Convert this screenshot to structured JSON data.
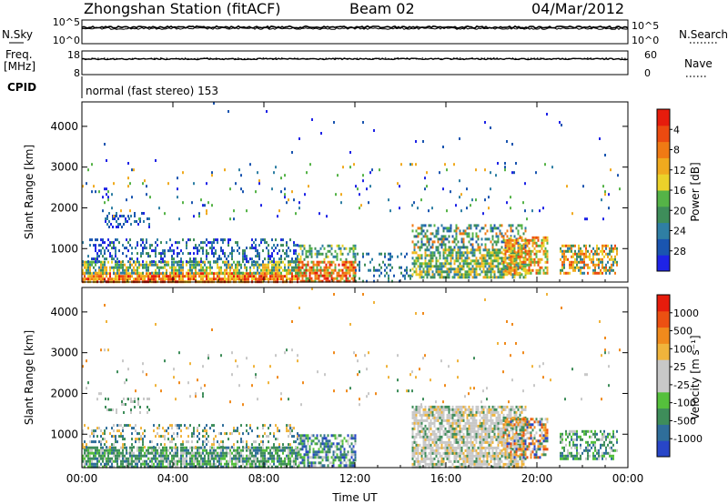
{
  "header": {
    "station": "Zhongshan Station (fitACF)",
    "beam": "Beam 02",
    "date": "04/Mar/2012"
  },
  "status_panels": {
    "nsky_label": "N.Sky",
    "nsearch_label": "N.Search",
    "nsky_ticks": [
      "10^5",
      "10^0"
    ],
    "nsearch_ticks": [
      "10^5",
      "10^0"
    ],
    "freq_label_1": "Freq.",
    "freq_label_2": "[MHz]",
    "freq_ticks": [
      "18",
      "8"
    ],
    "nave_label": "Nave",
    "nave_ticks": [
      "60",
      "0"
    ],
    "cpid_label": "CPID",
    "cpid_value": "normal (fast stereo) 153",
    "nsky_level": 0.3,
    "nsearch_level": 0.36,
    "freq_level": 0.34,
    "nave_level": 0.32
  },
  "chart_data": [
    {
      "type": "heatmap",
      "ylabel": "Slant Range [km]",
      "xlabel": "",
      "x_ticks": [
        "00:00",
        "04:00",
        "08:00",
        "12:00",
        "16:00",
        "20:00",
        "00:00"
      ],
      "x_range_hours": [
        0,
        24
      ],
      "y_ticks": [
        1000,
        2000,
        3000,
        4000
      ],
      "ylim": [
        180,
        4600
      ],
      "colorbar": {
        "label": "Power [dB]",
        "ticks": [
          "4",
          "8",
          "12",
          "16",
          "20",
          "24",
          "28"
        ],
        "colors": [
          "#1e23e6",
          "#1a55b0",
          "#2f7fa4",
          "#3e8d5a",
          "#55b347",
          "#ebd22a",
          "#f0aa1e",
          "#f07a14",
          "#ec4a10",
          "#e61c0c"
        ]
      }
    },
    {
      "type": "heatmap",
      "ylabel": "Slant Range [km]",
      "xlabel": "Time UT",
      "x_ticks": [
        "00:00",
        "04:00",
        "08:00",
        "12:00",
        "16:00",
        "20:00",
        "00:00"
      ],
      "x_range_hours": [
        0,
        24
      ],
      "y_ticks": [
        1000,
        2000,
        3000,
        4000
      ],
      "ylim": [
        180,
        4600
      ],
      "colorbar": {
        "label": "Velocity [m s⁻¹]",
        "ticks": [
          "1000",
          "500",
          "100",
          "25",
          "-25",
          "-100",
          "-500",
          "-1000"
        ],
        "colors": [
          "#2846c8",
          "#2f6e9a",
          "#3e8d5a",
          "#55c03c",
          "#c8c8c8",
          "#c8c8c8",
          "#f0b43c",
          "#f08a1c",
          "#ec5012",
          "#e61c0c"
        ]
      }
    }
  ]
}
